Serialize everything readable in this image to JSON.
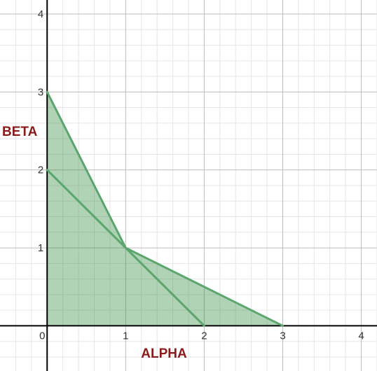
{
  "colors": {
    "background": "#ffffff",
    "grid_major": "#bcbcbc",
    "grid_minor": "#e6e6e6",
    "axis": "#000000",
    "region_fill": "#2e8b3a",
    "region_fill_opacity": 0.38,
    "line": "#5aa66c",
    "axis_title": "#8b1a1a"
  },
  "chart_data": {
    "type": "area",
    "xlabel": "ALPHA",
    "ylabel": "BETA",
    "xlim": [
      -0.6,
      4.2
    ],
    "ylim": [
      -0.58,
      4.18
    ],
    "grid": true,
    "x_ticks": [
      {
        "value": 0,
        "label": "0"
      },
      {
        "value": 1,
        "label": "1"
      },
      {
        "value": 2,
        "label": "2"
      },
      {
        "value": 3,
        "label": "3"
      },
      {
        "value": 4,
        "label": "4"
      }
    ],
    "y_ticks": [
      {
        "value": 1,
        "label": "1"
      },
      {
        "value": 2,
        "label": "2"
      },
      {
        "value": 3,
        "label": "3"
      },
      {
        "value": 4,
        "label": "4"
      }
    ],
    "region": {
      "points": [
        [
          0,
          0
        ],
        [
          0,
          3
        ],
        [
          1,
          1
        ],
        [
          3,
          0
        ]
      ]
    },
    "series": [
      {
        "x": [
          0,
          2
        ],
        "y": [
          2,
          0
        ]
      },
      {
        "x": [
          0,
          1,
          3
        ],
        "y": [
          3,
          1,
          0
        ]
      }
    ]
  }
}
